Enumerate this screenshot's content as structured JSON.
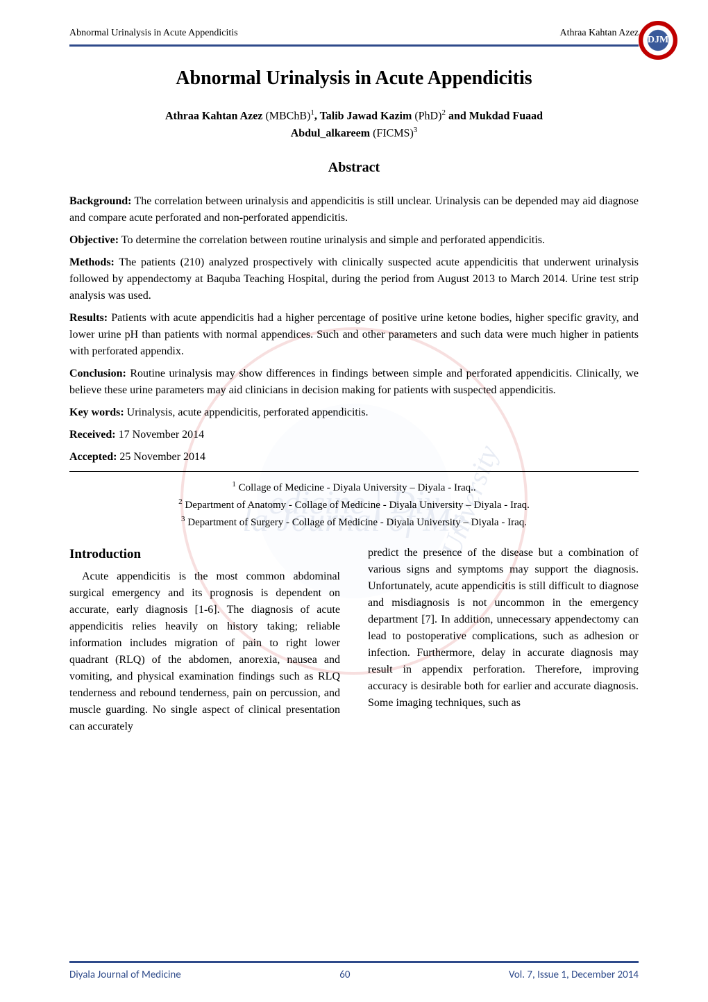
{
  "header": {
    "running_title": "Abnormal Urinalysis in Acute Appendicitis",
    "running_author": "Athraa Kahtan Azez",
    "logo_text": "DJM"
  },
  "title": "Abnormal Urinalysis in Acute Appendicitis",
  "authors_line1_parts": {
    "a1_name": "Athraa Kahtan Azez",
    "a1_degree": " (MBChB)",
    "a1_sup": "1",
    "sep1": ", ",
    "a2_name": "Talib Jawad Kazim",
    "a2_degree": " (PhD)",
    "a2_sup": "2",
    "sep2": " and ",
    "a3_name": "Mukdad Fuaad"
  },
  "authors_line2_parts": {
    "a3_name_cont": "Abdul_alkareem",
    "a3_degree": " (FICMS)",
    "a3_sup": "3"
  },
  "abstract_heading": "Abstract",
  "abstract": {
    "background_label": "Background:",
    "background_text": " The correlation between urinalysis and appendicitis is still unclear. Urinalysis can be depended may aid diagnose and compare acute perforated and non-perforated appendicitis.",
    "objective_label": "Objective:",
    "objective_text": " To determine the correlation between routine urinalysis and simple and perforated appendicitis.",
    "methods_label": "Methods:",
    "methods_text": " The patients (210) analyzed prospectively with clinically suspected acute appendicitis that underwent urinalysis followed by appendectomy at Baquba Teaching Hospital, during the period from August 2013 to March 2014. Urine test strip analysis was used.",
    "results_label": "Results:",
    "results_text": " Patients with acute appendicitis had a higher percentage of positive urine ketone bodies, higher specific gravity, and lower urine pH than patients with normal appendices. Such and other parameters and such data were much higher in patients with perforated appendix.",
    "conclusion_label": "Conclusion:",
    "conclusion_text": " Routine urinalysis may show differences in findings between simple and perforated appendicitis. Clinically, we believe these urine parameters may aid clinicians in decision making for patients with suspected appendicitis.",
    "keywords_label": "Key words:",
    "keywords_text": " Urinalysis, acute appendicitis, perforated appendicitis.",
    "received_label": "Received:",
    "received_text": " 17 November 2014",
    "accepted_label": "Accepted:",
    "accepted_text": " 25 November 2014"
  },
  "affiliations": {
    "a1_sup": "1",
    "a1_text": " Collage of Medicine - Diyala University – Diyala - Iraq..",
    "a2_sup": "2",
    "a2_text": " Department of Anatomy - Collage of Medicine - Diyala University – Diyala - Iraq.",
    "a3_sup": "3",
    "a3_text": " Department of Surgery - Collage of Medicine - Diyala University – Diyala - Iraq."
  },
  "intro_heading": "Introduction",
  "intro_col1": "Acute appendicitis is the most common abdominal surgical emergency and its prognosis is dependent on accurate, early diagnosis [1-6]. The diagnosis of acute appendicitis relies heavily on history taking; reliable information includes migration of pain to right lower quadrant (RLQ) of the abdomen, anorexia, nausea and vomiting, and physical examination findings such as RLQ tenderness and rebound tenderness, pain on percussion, and muscle guarding. No single aspect of clinical presentation can accurately",
  "intro_col2": "predict the presence of the disease but a combination of various signs and symptoms may support the diagnosis.  Unfortunately, acute appendicitis is still difficult to diagnose and misdiagnosis is not uncommon in the emergency department [7]. In addition, unnecessary appendectomy can lead to postoperative complications, such as adhesion or infection. Furthermore, delay in accurate diagnosis may result in appendix perforation. Therefore, improving accuracy is desirable both for earlier and accurate diagnosis. Some imaging techniques, such as",
  "footer": {
    "journal": "Diyala Journal of Medicine",
    "page": "60",
    "issue": "Vol. 7, Issue 1, December 2014"
  },
  "watermark": {
    "text_top": "la Journal of Me",
    "text_bottom": "edicine | Diy",
    "text_side": "University",
    "circle_color": "#c00000",
    "inner_color": "#c0d8f0",
    "text_color": "#4a6ea8"
  },
  "colors": {
    "header_line": "#2e4a8a",
    "footer_text": "#2e4a8a",
    "logo_border": "#c00000",
    "logo_inner": "#3a5a9a"
  }
}
